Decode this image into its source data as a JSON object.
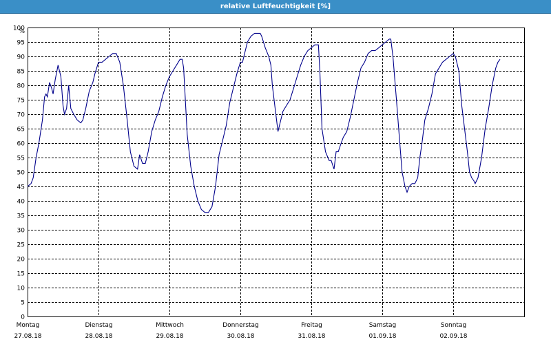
{
  "window": {
    "title": "relative Luftfeuchtigkeit [%]"
  },
  "chart_data": {
    "type": "line",
    "title": "relative Luftfeuchtigkeit [%]",
    "ylabel": "%",
    "xlabel": "",
    "ylim": [
      0,
      100
    ],
    "ytick_step": 5,
    "grid": true,
    "grid_style": "dashed",
    "line_color": "#00008b",
    "days": [
      {
        "weekday": "Montag",
        "date": "27.08.18"
      },
      {
        "weekday": "Dienstag",
        "date": "28.08.18"
      },
      {
        "weekday": "Mittwoch",
        "date": "29.08.18"
      },
      {
        "weekday": "Donnerstag",
        "date": "30.08.18"
      },
      {
        "weekday": "Freitag",
        "date": "31.08.18"
      },
      {
        "weekday": "Samstag",
        "date": "01.09.18"
      },
      {
        "weekday": "Sonntag",
        "date": "02.09.18"
      }
    ],
    "x_unit": "days since Montag 27.08.18 00:00",
    "series": [
      {
        "values": [
          [
            0.0,
            45
          ],
          [
            0.05,
            46
          ],
          [
            0.08,
            48
          ],
          [
            0.12,
            55
          ],
          [
            0.16,
            60
          ],
          [
            0.21,
            68
          ],
          [
            0.24,
            76
          ],
          [
            0.26,
            77
          ],
          [
            0.28,
            76
          ],
          [
            0.31,
            81
          ],
          [
            0.34,
            79
          ],
          [
            0.36,
            77
          ],
          [
            0.39,
            82
          ],
          [
            0.43,
            87
          ],
          [
            0.47,
            83
          ],
          [
            0.5,
            73
          ],
          [
            0.52,
            70
          ],
          [
            0.55,
            72
          ],
          [
            0.58,
            80
          ],
          [
            0.61,
            72
          ],
          [
            0.65,
            70
          ],
          [
            0.7,
            68
          ],
          [
            0.75,
            67
          ],
          [
            0.78,
            68
          ],
          [
            0.82,
            72
          ],
          [
            0.87,
            78
          ],
          [
            0.92,
            81
          ],
          [
            0.95,
            84
          ],
          [
            1.0,
            88
          ],
          [
            1.05,
            88
          ],
          [
            1.1,
            89
          ],
          [
            1.15,
            90
          ],
          [
            1.2,
            91
          ],
          [
            1.25,
            91
          ],
          [
            1.3,
            88
          ],
          [
            1.35,
            80
          ],
          [
            1.4,
            69
          ],
          [
            1.45,
            57
          ],
          [
            1.5,
            52
          ],
          [
            1.55,
            51
          ],
          [
            1.58,
            56
          ],
          [
            1.62,
            53
          ],
          [
            1.66,
            53
          ],
          [
            1.7,
            57
          ],
          [
            1.75,
            64
          ],
          [
            1.8,
            68
          ],
          [
            1.85,
            71
          ],
          [
            1.9,
            76
          ],
          [
            1.95,
            80
          ],
          [
            2.0,
            83
          ],
          [
            2.05,
            85
          ],
          [
            2.1,
            87
          ],
          [
            2.15,
            89
          ],
          [
            2.18,
            89
          ],
          [
            2.2,
            86
          ],
          [
            2.25,
            63
          ],
          [
            2.3,
            52
          ],
          [
            2.35,
            45
          ],
          [
            2.4,
            40
          ],
          [
            2.45,
            37
          ],
          [
            2.5,
            36
          ],
          [
            2.55,
            36
          ],
          [
            2.6,
            38
          ],
          [
            2.65,
            45
          ],
          [
            2.7,
            56
          ],
          [
            2.75,
            61
          ],
          [
            2.8,
            66
          ],
          [
            2.85,
            74
          ],
          [
            2.9,
            79
          ],
          [
            2.95,
            84
          ],
          [
            3.0,
            88
          ],
          [
            3.03,
            88
          ],
          [
            3.05,
            90
          ],
          [
            3.1,
            95
          ],
          [
            3.15,
            97
          ],
          [
            3.2,
            98
          ],
          [
            3.25,
            98
          ],
          [
            3.28,
            98
          ],
          [
            3.3,
            97
          ],
          [
            3.35,
            93
          ],
          [
            3.4,
            90
          ],
          [
            3.43,
            87
          ],
          [
            3.45,
            80
          ],
          [
            3.5,
            70
          ],
          [
            3.53,
            64
          ],
          [
            3.57,
            68
          ],
          [
            3.6,
            71
          ],
          [
            3.65,
            73
          ],
          [
            3.7,
            75
          ],
          [
            3.75,
            79
          ],
          [
            3.8,
            83
          ],
          [
            3.85,
            87
          ],
          [
            3.9,
            90
          ],
          [
            3.95,
            92
          ],
          [
            4.0,
            93
          ],
          [
            4.05,
            94
          ],
          [
            4.1,
            94
          ],
          [
            4.12,
            85
          ],
          [
            4.15,
            65
          ],
          [
            4.2,
            57
          ],
          [
            4.25,
            54
          ],
          [
            4.28,
            54
          ],
          [
            4.32,
            51
          ],
          [
            4.35,
            57
          ],
          [
            4.38,
            57
          ],
          [
            4.42,
            60
          ],
          [
            4.45,
            62
          ],
          [
            4.5,
            64
          ],
          [
            4.55,
            69
          ],
          [
            4.6,
            75
          ],
          [
            4.65,
            81
          ],
          [
            4.7,
            86
          ],
          [
            4.75,
            88
          ],
          [
            4.8,
            91
          ],
          [
            4.85,
            92
          ],
          [
            4.9,
            92
          ],
          [
            4.95,
            93
          ],
          [
            5.0,
            94
          ],
          [
            5.05,
            95
          ],
          [
            5.1,
            96
          ],
          [
            5.12,
            96
          ],
          [
            5.15,
            90
          ],
          [
            5.2,
            75
          ],
          [
            5.25,
            59
          ],
          [
            5.28,
            50
          ],
          [
            5.32,
            45
          ],
          [
            5.35,
            43
          ],
          [
            5.38,
            45
          ],
          [
            5.42,
            46
          ],
          [
            5.46,
            46
          ],
          [
            5.5,
            48
          ],
          [
            5.53,
            55
          ],
          [
            5.56,
            60
          ],
          [
            5.6,
            68
          ],
          [
            5.65,
            72
          ],
          [
            5.7,
            77
          ],
          [
            5.75,
            84
          ],
          [
            5.8,
            86
          ],
          [
            5.85,
            88
          ],
          [
            5.9,
            89
          ],
          [
            5.95,
            90
          ],
          [
            6.0,
            91
          ],
          [
            6.03,
            90
          ],
          [
            6.08,
            85
          ],
          [
            6.12,
            73
          ],
          [
            6.16,
            65
          ],
          [
            6.2,
            57
          ],
          [
            6.23,
            50
          ],
          [
            6.26,
            48
          ],
          [
            6.29,
            47
          ],
          [
            6.31,
            46
          ],
          [
            6.35,
            48
          ],
          [
            6.4,
            55
          ],
          [
            6.45,
            65
          ],
          [
            6.5,
            72
          ],
          [
            6.55,
            80
          ],
          [
            6.6,
            86
          ],
          [
            6.63,
            88
          ],
          [
            6.66,
            89
          ]
        ]
      }
    ]
  }
}
